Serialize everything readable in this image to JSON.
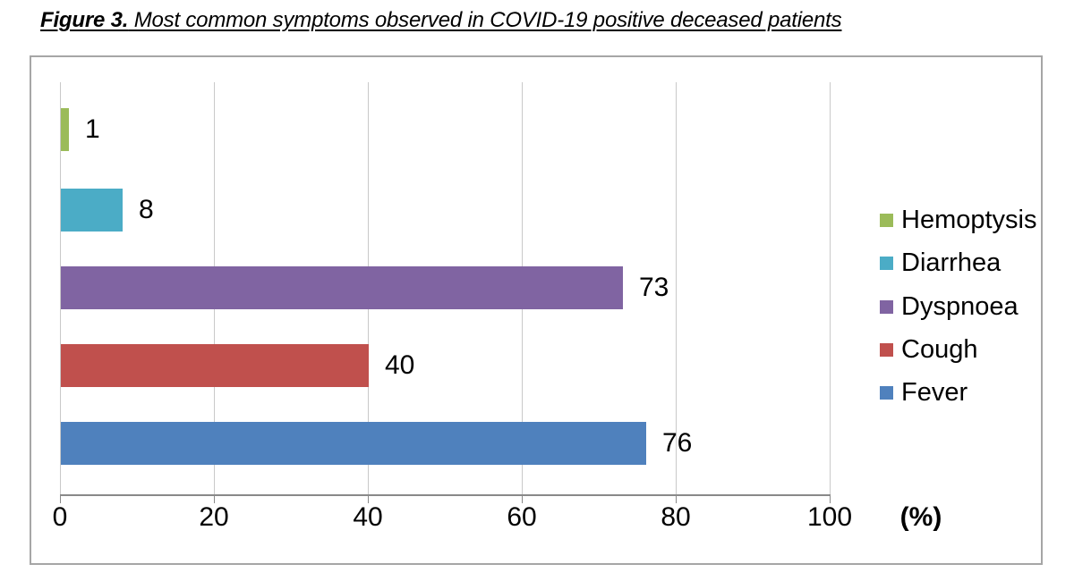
{
  "figure_title": {
    "prefix": "Figure 3.",
    "rest": " Most common symptoms observed in COVID-19 positive deceased patients"
  },
  "chart_data": {
    "type": "bar",
    "orientation": "horizontal",
    "title": "Figure 3. Most common symptoms observed in COVID-19 positive deceased patients",
    "categories_top_to_bottom": [
      "Hemoptysis",
      "Diarrhea",
      "Dyspnoea",
      "Cough",
      "Fever"
    ],
    "series": [
      {
        "name": "Hemoptysis",
        "value": 1,
        "color": "#9BBB59"
      },
      {
        "name": "Diarrhea",
        "value": 8,
        "color": "#4BACC6"
      },
      {
        "name": "Dyspnoea",
        "value": 73,
        "color": "#8064A2"
      },
      {
        "name": "Cough",
        "value": 40,
        "color": "#C0504D"
      },
      {
        "name": "Fever",
        "value": 76,
        "color": "#4F81BD"
      }
    ],
    "data_labels": [
      1,
      8,
      73,
      40,
      76
    ],
    "x_ticks": [
      0,
      20,
      40,
      60,
      80,
      100
    ],
    "xlim": [
      0,
      100
    ],
    "xlabel": "(%)",
    "ylabel": "",
    "grid": true,
    "legend_position": "right",
    "legend": [
      "Hemoptysis",
      "Diarrhea",
      "Dyspnoea",
      "Cough",
      "Fever"
    ]
  },
  "colors": {
    "gridline": "#c9c9c9",
    "axis_line": "#898989",
    "chart_border": "#a6a6a6",
    "text": "#000000"
  }
}
